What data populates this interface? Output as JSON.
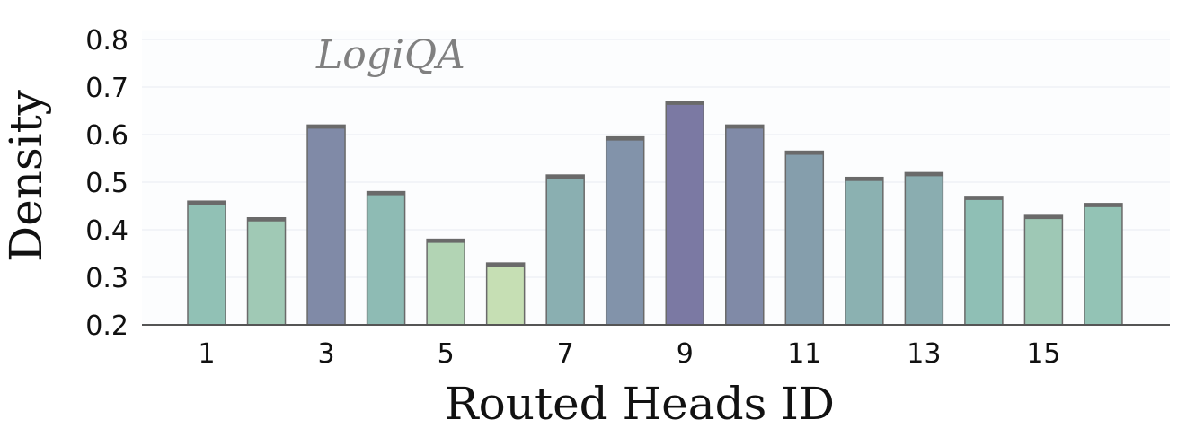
{
  "chart_data": {
    "type": "bar",
    "title": "LogiQA",
    "xlabel": "Routed Heads ID",
    "ylabel": "Density",
    "categories": [
      "1",
      "2",
      "3",
      "4",
      "5",
      "6",
      "7",
      "8",
      "9",
      "10",
      "11",
      "12",
      "13",
      "14",
      "15",
      "16"
    ],
    "x_tick_labels": [
      "1",
      "3",
      "5",
      "7",
      "9",
      "11",
      "13",
      "15"
    ],
    "y_tick_labels": [
      "0.2",
      "0.3",
      "0.4",
      "0.5",
      "0.6",
      "0.7",
      "0.8"
    ],
    "values": [
      0.46,
      0.425,
      0.62,
      0.48,
      0.38,
      0.33,
      0.515,
      0.595,
      0.67,
      0.62,
      0.565,
      0.51,
      0.52,
      0.47,
      0.43,
      0.455
    ],
    "ylim": [
      0.2,
      0.82
    ],
    "grid": true,
    "colormap": {
      "low": "#c6dfb4",
      "mid": "#8fc0b5",
      "high": "#7b79a3"
    },
    "bar_edge_color": "#6a6a6a",
    "grid_color": "#eef2f6",
    "axis_color": "#555555"
  }
}
